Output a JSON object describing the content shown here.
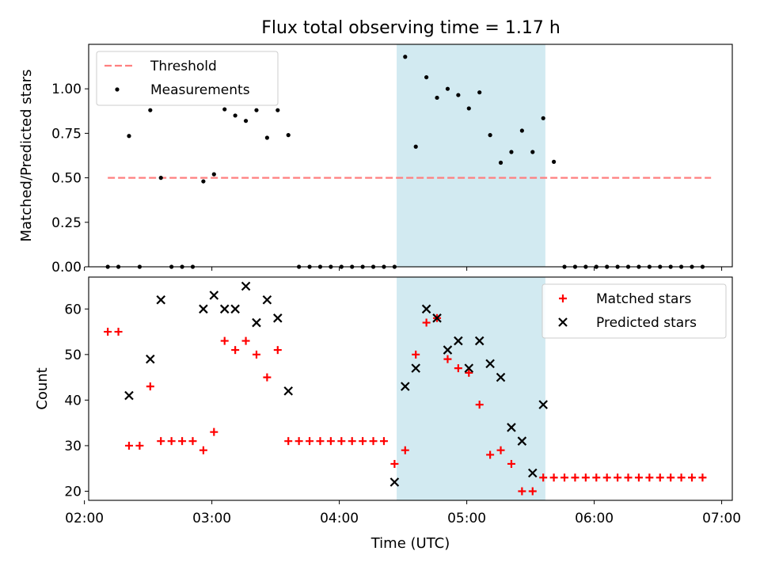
{
  "figure": {
    "title": "Flux total observing time = 1.17 h"
  },
  "chart_data": [
    {
      "type": "scatter",
      "ylabel": "Matched/Predicted stars",
      "ylim": [
        0,
        1.25
      ],
      "yticks": [
        0.0,
        0.25,
        0.5,
        0.75,
        1.0
      ],
      "ytick_labels": [
        "0.00",
        "0.25",
        "0.50",
        "0.75",
        "1.00"
      ],
      "xlim": [
        "02:02",
        "07:05"
      ],
      "shaded_span": [
        "04:27",
        "05:37"
      ],
      "shade_color": "#add8e6",
      "legend_position": "upper left",
      "series": [
        {
          "name": "Threshold",
          "kind": "dashed-line",
          "color": "#ff7f7f",
          "x": [
            "02:11",
            "06:55"
          ],
          "y": [
            0.5,
            0.5
          ]
        },
        {
          "name": "Measurements",
          "kind": "dot",
          "color": "#000000",
          "x": [
            "02:11",
            "02:16",
            "02:21",
            "02:26",
            "02:31",
            "02:36",
            "02:41",
            "02:46",
            "02:51",
            "02:56",
            "03:01",
            "03:06",
            "03:11",
            "03:16",
            "03:21",
            "03:26",
            "03:31",
            "03:36",
            "03:41",
            "03:46",
            "03:51",
            "03:56",
            "04:01",
            "04:06",
            "04:11",
            "04:16",
            "04:21",
            "04:26",
            "04:31",
            "04:36",
            "04:41",
            "04:46",
            "04:51",
            "04:56",
            "05:01",
            "05:06",
            "05:11",
            "05:16",
            "05:21",
            "05:26",
            "05:31",
            "05:36",
            "05:41",
            "05:46",
            "05:51",
            "05:56",
            "06:01",
            "06:06",
            "06:11",
            "06:16",
            "06:21",
            "06:26",
            "06:31",
            "06:36",
            "06:41",
            "06:46",
            "06:51"
          ],
          "y": [
            0,
            0,
            0.735,
            0,
            0.88,
            0.5,
            0,
            0,
            0,
            0.48,
            0.52,
            0.885,
            0.85,
            0.82,
            0.88,
            0.725,
            0.88,
            0.74,
            0,
            0,
            0,
            0,
            0,
            0,
            0,
            0,
            0,
            0,
            1.18,
            0.675,
            1.065,
            0.95,
            1.0,
            0.965,
            0.89,
            0.98,
            0.74,
            0.585,
            0.645,
            0.765,
            0.645,
            0.835,
            0.59,
            0,
            0,
            0,
            0,
            0,
            0,
            0,
            0,
            0,
            0,
            0,
            0,
            0,
            0
          ]
        }
      ]
    },
    {
      "type": "scatter",
      "xlabel": "Time (UTC)",
      "ylabel": "Count",
      "ylim": [
        18,
        67
      ],
      "yticks": [
        20,
        30,
        40,
        50,
        60
      ],
      "ytick_labels": [
        "20",
        "30",
        "40",
        "50",
        "60"
      ],
      "xlim": [
        "02:02",
        "07:05"
      ],
      "xticks": [
        "02:00",
        "03:00",
        "04:00",
        "05:00",
        "06:00",
        "07:00"
      ],
      "shaded_span": [
        "04:27",
        "05:37"
      ],
      "shade_color": "#add8e6",
      "legend_position": "upper right",
      "series": [
        {
          "name": "Matched stars",
          "kind": "plus",
          "color": "#ff0000",
          "x": [
            "02:11",
            "02:16",
            "02:21",
            "02:26",
            "02:31",
            "02:36",
            "02:41",
            "02:46",
            "02:51",
            "02:56",
            "03:01",
            "03:06",
            "03:11",
            "03:16",
            "03:21",
            "03:26",
            "03:31",
            "03:36",
            "03:41",
            "03:46",
            "03:51",
            "03:56",
            "04:01",
            "04:06",
            "04:11",
            "04:16",
            "04:21",
            "04:26",
            "04:31",
            "04:36",
            "04:41",
            "04:46",
            "04:51",
            "04:56",
            "05:01",
            "05:06",
            "05:11",
            "05:16",
            "05:21",
            "05:26",
            "05:31",
            "05:36",
            "05:41",
            "05:46",
            "05:51",
            "05:56",
            "06:01",
            "06:06",
            "06:11",
            "06:16",
            "06:21",
            "06:26",
            "06:31",
            "06:36",
            "06:41",
            "06:46",
            "06:51"
          ],
          "y": [
            55,
            55,
            30,
            30,
            43,
            31,
            31,
            31,
            31,
            29,
            33,
            53,
            51,
            53,
            50,
            45,
            51,
            31,
            31,
            31,
            31,
            31,
            31,
            31,
            31,
            31,
            31,
            26,
            29,
            50,
            57,
            58,
            49,
            47,
            46,
            39,
            28,
            29,
            26,
            20,
            20,
            23,
            23,
            23,
            23,
            23,
            23,
            23,
            23,
            23,
            23,
            23,
            23,
            23,
            23,
            23,
            23
          ]
        },
        {
          "name": "Predicted stars",
          "kind": "cross",
          "color": "#000000",
          "x": [
            "02:21",
            "02:31",
            "02:36",
            "02:56",
            "03:01",
            "03:06",
            "03:11",
            "03:16",
            "03:21",
            "03:26",
            "03:31",
            "03:36",
            "04:26",
            "04:31",
            "04:36",
            "04:41",
            "04:46",
            "04:51",
            "04:56",
            "05:01",
            "05:06",
            "05:11",
            "05:16",
            "05:21",
            "05:26",
            "05:31",
            "05:36"
          ],
          "y": [
            41,
            49,
            62,
            60,
            63,
            60,
            60,
            65,
            57,
            62,
            58,
            42,
            22,
            43,
            47,
            60,
            58,
            51,
            53,
            47,
            53,
            48,
            45,
            34,
            31,
            24,
            39
          ]
        }
      ]
    }
  ]
}
